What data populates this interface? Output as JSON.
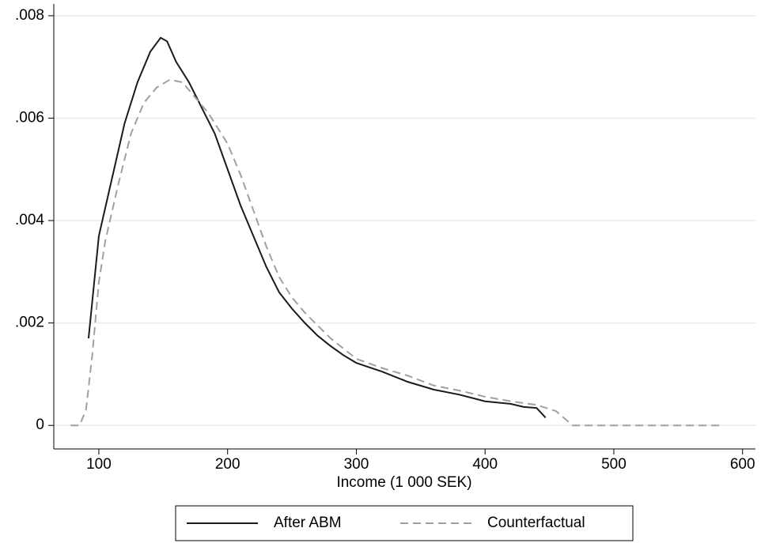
{
  "chart_data": {
    "type": "line",
    "x_label": "Income (1 000 SEK)",
    "xlim": [
      65,
      610
    ],
    "xticks": [
      100,
      200,
      300,
      400,
      500,
      600
    ],
    "ylim": [
      -0.00046,
      0.00823
    ],
    "yticks": [
      0,
      {
        "value": 0.002,
        "label": ".002"
      },
      {
        "value": 0.004,
        "label": ".004"
      },
      {
        "value": 0.006,
        "label": ".006"
      },
      {
        "value": 0.008,
        "label": ".008"
      }
    ],
    "grid": true,
    "legend": "bottom",
    "series": [
      {
        "name": "After ABM",
        "color": "#1a1a1a",
        "style": "solid",
        "x": [
          92,
          100,
          110,
          120,
          130,
          140,
          148,
          153,
          160,
          170,
          180,
          190,
          200,
          210,
          220,
          230,
          240,
          250,
          260,
          270,
          280,
          290,
          300,
          320,
          340,
          360,
          380,
          400,
          420,
          430,
          440,
          447
        ],
        "values": [
          0.0017,
          0.0037,
          0.0048,
          0.0059,
          0.0067,
          0.0073,
          0.00757,
          0.0075,
          0.0071,
          0.0067,
          0.0062,
          0.0057,
          0.005,
          0.0043,
          0.0037,
          0.0031,
          0.0026,
          0.00228,
          0.002,
          0.00175,
          0.00155,
          0.00137,
          0.00122,
          0.00105,
          0.00085,
          0.0007,
          0.0006,
          0.00047,
          0.00042,
          0.00036,
          0.00034,
          0.00015
        ]
      },
      {
        "name": "Counterfactual",
        "color": "#a0a0a0",
        "style": "dashed",
        "x": [
          78,
          85,
          90,
          95,
          100,
          105,
          115,
          125,
          135,
          145,
          155,
          165,
          175,
          185,
          200,
          210,
          220,
          230,
          240,
          250,
          260,
          280,
          300,
          320,
          340,
          360,
          380,
          400,
          420,
          440,
          455,
          468,
          500,
          585
        ],
        "values": [
          0,
          0,
          0.0003,
          0.0014,
          0.0028,
          0.0036,
          0.0047,
          0.0057,
          0.0063,
          0.0066,
          0.00675,
          0.0067,
          0.0064,
          0.0061,
          0.0055,
          0.0049,
          0.0042,
          0.0035,
          0.0029,
          0.0025,
          0.0022,
          0.0017,
          0.0013,
          0.00112,
          0.00097,
          0.00078,
          0.00068,
          0.00056,
          0.00047,
          0.0004,
          0.00028,
          0,
          0,
          0
        ]
      }
    ]
  }
}
